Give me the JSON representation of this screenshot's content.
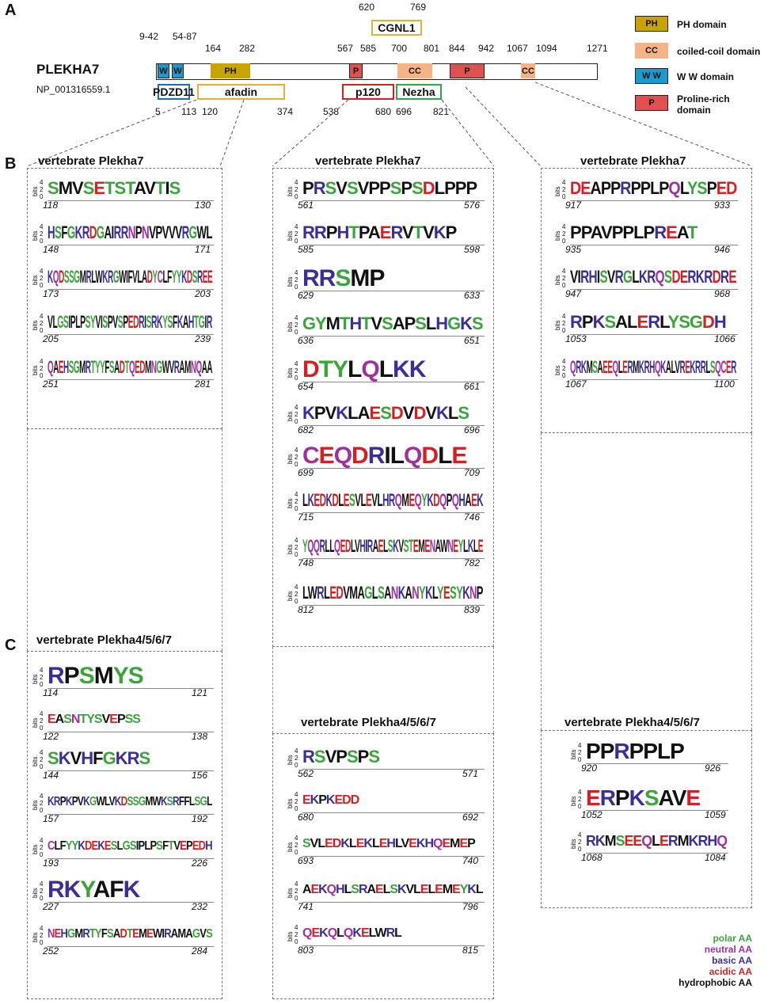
{
  "panels": {
    "a": "A",
    "b": "B",
    "c": "C"
  },
  "protein": {
    "name": "PLEKHA7",
    "accession": "NP_001316559.1"
  },
  "domain_map": {
    "top_numbers": [
      "9-42",
      "54-87",
      "164",
      "282",
      "567",
      "585",
      "700",
      "801",
      "844",
      "942",
      "1067",
      "1094",
      "1271"
    ],
    "cgnl1": {
      "label": "CGNL1",
      "start": "620",
      "end": "769"
    },
    "domains": [
      {
        "label": "W"
      },
      {
        "label": "W"
      },
      {
        "label": "PH"
      },
      {
        "label": "P"
      },
      {
        "label": "CC"
      },
      {
        "label": "P"
      },
      {
        "label": "CC"
      }
    ],
    "binding": [
      {
        "label": "PDZD11",
        "start": "5",
        "end": "113"
      },
      {
        "label": "afadin",
        "start": "120",
        "end": "374"
      },
      {
        "label": "p120",
        "start": "538",
        "end": "680"
      },
      {
        "label": "Nezha",
        "start": "696",
        "end": "821"
      }
    ]
  },
  "legend": [
    {
      "swatch": "PH",
      "label": "PH domain",
      "color": "#c9a400"
    },
    {
      "swatch": "CC",
      "label": "coiled-coil domain",
      "color": "#f5b487"
    },
    {
      "swatch": "W W",
      "label": "W W domain",
      "color": "#1a9bd0"
    },
    {
      "swatch": "P",
      "label": "Proline-rich domain",
      "color": "#e05050"
    }
  ],
  "colors": {
    "polar": "#3aa53a",
    "neutral": "#a030a0",
    "basic": "#3a2e9a",
    "acidic": "#d42020",
    "hydrophobic": "#111111"
  },
  "panel_b": {
    "titles": [
      "vertebrate Plekha7",
      "vertebrate Plekha7",
      "vertebrate Plekha7"
    ],
    "col1": [
      {
        "seq": "SMVSETSTAVTIS",
        "start": "118",
        "end": "130"
      },
      {
        "seq": "HSFGKRDGAIRRNPNVPVVVRGWL",
        "start": "148",
        "end": "171"
      },
      {
        "seq": "KQDSSGMRLWKRGWIFVLADYCLFYYKDSREE",
        "start": "173",
        "end": "203"
      },
      {
        "seq": "VLGSIPLPSYVISPVSPEDRISRKYSFKAHTGIR",
        "start": "205",
        "end": "239"
      },
      {
        "seq": "QAEHSGMRTYYFSADTQEDMNGWVRAMNQAA",
        "start": "251",
        "end": "281"
      }
    ],
    "col2": [
      {
        "seq": "PRSVSVPPSPSDLPPP",
        "start": "561",
        "end": "576"
      },
      {
        "seq": "RRPHTPAERVTVKP",
        "start": "585",
        "end": "598"
      },
      {
        "seq": "RRSMP",
        "start": "629",
        "end": "633"
      },
      {
        "seq": "GYMTHTVSAPSLHGKS",
        "start": "636",
        "end": "651"
      },
      {
        "seq": "DTYLQLKK",
        "start": "654",
        "end": "661"
      },
      {
        "seq": "KPVKLAESDVDVKLS",
        "start": "682",
        "end": "696"
      },
      {
        "seq": "CEQDRILQDLE",
        "start": "699",
        "end": "709"
      },
      {
        "seq": "LKEDKDLESVLEVLHRQMEQYKDQPQHAEK",
        "start": "715",
        "end": "746"
      },
      {
        "seq": "YQQRLLQEDLVHIRAELSKVSTEMENAWNEYLKLE",
        "start": "748",
        "end": "782"
      },
      {
        "seq": "LWRLEDVMAGLSANKANYKLYESYKNP",
        "start": "812",
        "end": "839"
      }
    ],
    "col3": [
      {
        "seq": "DEAPPRPPLPQLYSPED",
        "start": "917",
        "end": "933"
      },
      {
        "seq": "PPAVPPLPREAT",
        "start": "935",
        "end": "946"
      },
      {
        "seq": "VIRHISVRGLKRQSDERKRDRE",
        "start": "947",
        "end": "968"
      },
      {
        "seq": "RPKSALERLYSGDH",
        "start": "1053",
        "end": "1066"
      },
      {
        "seq": "QRKMSAEEQLERMKRHQKALVREKRRLSQCER",
        "start": "1067",
        "end": "1100"
      }
    ]
  },
  "panel_c": {
    "titles": [
      "vertebrate Plekha4/5/6/7",
      "vertebrate Plekha4/5/6/7",
      "vertebrate Plekha4/5/6/7"
    ],
    "col1": [
      {
        "seq": "RPSMYS",
        "start": "114",
        "end": "121"
      },
      {
        "seq": "EASNTYSVEPSS",
        "start": "122",
        "end": "138"
      },
      {
        "seq": "SKVHFGKRS",
        "start": "144",
        "end": "156"
      },
      {
        "seq": "KRPKPVKGWLVKDSSGMWKSRFFLSGL",
        "start": "157",
        "end": "192"
      },
      {
        "seq": "CLFYYKDEKESLGSIPLPSFTVEPEDH",
        "start": "193",
        "end": "226"
      },
      {
        "seq": "RKYAFK",
        "start": "227",
        "end": "232"
      },
      {
        "seq": "NEHGMRTYFSADTEMEWIRAMAGVS",
        "start": "252",
        "end": "284"
      }
    ],
    "col2": [
      {
        "seq": "RSVPSPS",
        "start": "562",
        "end": "571"
      },
      {
        "seq": "EKPKEDD",
        "start": "680",
        "end": "692"
      },
      {
        "seq": "SVLEDKLEKLEHLVEKHQEMEP",
        "start": "693",
        "end": "740"
      },
      {
        "seq": "AEKQHLSRAELSKVLELEMEYKL",
        "start": "741",
        "end": "796"
      },
      {
        "seq": "QEKQLQKELWRL",
        "start": "803",
        "end": "815"
      }
    ],
    "col3": [
      {
        "seq": "PPRPPLP",
        "start": "920",
        "end": "926"
      },
      {
        "seq": "ERPKSAVE",
        "start": "1052",
        "end": "1059"
      },
      {
        "seq": "RKMSEEQLERMKRHQ",
        "start": "1068",
        "end": "1084"
      }
    ]
  },
  "logo_axis": {
    "bits": "bits",
    "t4": "4",
    "t2": "2",
    "t0": "0"
  },
  "aa_legend": [
    "polar AA",
    "neutral AA",
    "basic AA",
    "acidic AA",
    "hydrophobic AA"
  ]
}
